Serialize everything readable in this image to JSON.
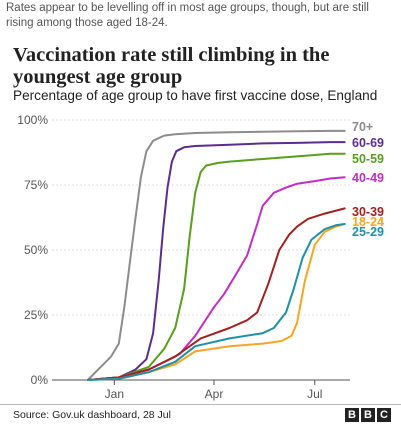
{
  "caption": "Rates appear to be levelling off in most age groups, though, but are still rising among those aged 18-24.",
  "source": "Source: Gov.uk dashboard, 28 Jul",
  "logo": [
    "B",
    "B",
    "C"
  ],
  "chart_data": {
    "type": "line",
    "title": "Vaccination rate still climbing in the youngest age group",
    "subtitle": "Percentage of age group to have first vaccine dose, England",
    "y_ticks": [
      "0%",
      "25%",
      "50%",
      "75%",
      "100%"
    ],
    "x_ticks": [
      "Jan",
      "Apr",
      "Jul"
    ],
    "ylim": [
      0,
      100
    ],
    "grid": true,
    "series": [
      {
        "name": "70+",
        "color": "#8c8c8c",
        "x": [
          "2020-12-08",
          "2020-12-15",
          "2020-12-22",
          "2020-12-29",
          "2021-01-05",
          "2021-01-10",
          "2021-01-15",
          "2021-01-20",
          "2021-01-25",
          "2021-01-30",
          "2021-02-05",
          "2021-02-10",
          "2021-02-15",
          "2021-02-25",
          "2021-03-15",
          "2021-04-15",
          "2021-05-15",
          "2021-06-15",
          "2021-07-15",
          "2021-07-28"
        ],
        "y": [
          0,
          3,
          6,
          9,
          14,
          28,
          45,
          62,
          78,
          88,
          92,
          93,
          94,
          94.5,
          95,
          95.3,
          95.5,
          95.7,
          95.8,
          95.8
        ]
      },
      {
        "name": "60-69",
        "color": "#5b2d8e",
        "x": [
          "2020-12-08",
          "2021-01-05",
          "2021-01-20",
          "2021-01-30",
          "2021-02-05",
          "2021-02-10",
          "2021-02-14",
          "2021-02-18",
          "2021-02-22",
          "2021-02-26",
          "2021-03-05",
          "2021-03-15",
          "2021-04-15",
          "2021-05-15",
          "2021-06-15",
          "2021-07-15",
          "2021-07-28"
        ],
        "y": [
          0,
          1,
          4,
          8,
          18,
          38,
          58,
          74,
          84,
          88,
          89.5,
          90,
          90.5,
          91,
          91.2,
          91.5,
          91.5
        ]
      },
      {
        "name": "50-59",
        "color": "#5a9e1e",
        "x": [
          "2020-12-08",
          "2021-01-05",
          "2021-02-01",
          "2021-02-15",
          "2021-02-25",
          "2021-03-05",
          "2021-03-10",
          "2021-03-15",
          "2021-03-20",
          "2021-03-25",
          "2021-04-05",
          "2021-04-15",
          "2021-05-15",
          "2021-06-15",
          "2021-07-15",
          "2021-07-28"
        ],
        "y": [
          0,
          1,
          5,
          12,
          20,
          35,
          55,
          72,
          80,
          82.5,
          83.5,
          84,
          85,
          86,
          87,
          87
        ]
      },
      {
        "name": "40-49",
        "color": "#c12ec1",
        "x": [
          "2020-12-08",
          "2021-01-05",
          "2021-02-01",
          "2021-03-01",
          "2021-03-15",
          "2021-04-01",
          "2021-04-10",
          "2021-04-20",
          "2021-05-01",
          "2021-05-10",
          "2021-05-15",
          "2021-05-25",
          "2021-06-05",
          "2021-06-15",
          "2021-07-01",
          "2021-07-15",
          "2021-07-28"
        ],
        "y": [
          0,
          1,
          4,
          10,
          17,
          28,
          33,
          40,
          48,
          60,
          67,
          72,
          74,
          75.5,
          76.5,
          77.5,
          78
        ]
      },
      {
        "name": "30-39",
        "color": "#a32020",
        "x": [
          "2020-12-08",
          "2021-01-05",
          "2021-02-01",
          "2021-02-25",
          "2021-03-20",
          "2021-04-15",
          "2021-05-01",
          "2021-05-10",
          "2021-05-20",
          "2021-05-30",
          "2021-06-08",
          "2021-06-15",
          "2021-06-25",
          "2021-07-10",
          "2021-07-28"
        ],
        "y": [
          0,
          1,
          4,
          9,
          16,
          20,
          23,
          26,
          37,
          50,
          56,
          59,
          62,
          64,
          66
        ]
      },
      {
        "name": "18-24",
        "color": "#f5a623",
        "x": [
          "2020-12-08",
          "2021-01-05",
          "2021-02-01",
          "2021-02-25",
          "2021-03-15",
          "2021-04-15",
          "2021-05-15",
          "2021-06-01",
          "2021-06-10",
          "2021-06-15",
          "2021-06-22",
          "2021-07-01",
          "2021-07-10",
          "2021-07-20",
          "2021-07-28"
        ],
        "y": [
          0,
          0.5,
          3,
          6,
          11,
          13,
          14,
          15,
          17,
          22,
          38,
          52,
          57,
          59,
          60
        ]
      },
      {
        "name": "25-29",
        "color": "#1f8fa8",
        "x": [
          "2020-12-08",
          "2021-01-05",
          "2021-02-01",
          "2021-02-25",
          "2021-03-15",
          "2021-04-15",
          "2021-05-15",
          "2021-05-25",
          "2021-06-05",
          "2021-06-12",
          "2021-06-20",
          "2021-06-28",
          "2021-07-10",
          "2021-07-20",
          "2021-07-28"
        ],
        "y": [
          0,
          0.5,
          3,
          7,
          13,
          16,
          18,
          20,
          26,
          35,
          47,
          54,
          58,
          59.5,
          60
        ]
      }
    ]
  }
}
